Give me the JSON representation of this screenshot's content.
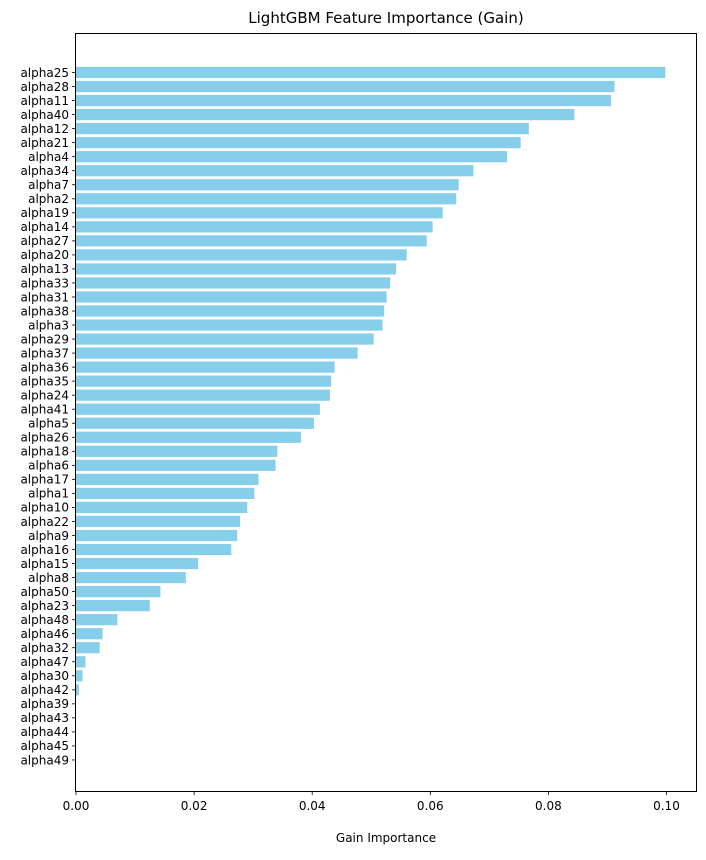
{
  "chart_data": {
    "type": "bar",
    "orientation": "horizontal",
    "title": "LightGBM Feature Importance (Gain)",
    "xlabel": "Gain Importance",
    "ylabel": "",
    "xlim": [
      0,
      0.105
    ],
    "xticks": [
      "0.00",
      "0.02",
      "0.04",
      "0.06",
      "0.08",
      "0.10"
    ],
    "bar_color": "#87CEEB",
    "categories": [
      "alpha25",
      "alpha28",
      "alpha11",
      "alpha40",
      "alpha12",
      "alpha21",
      "alpha4",
      "alpha34",
      "alpha7",
      "alpha2",
      "alpha19",
      "alpha14",
      "alpha27",
      "alpha20",
      "alpha13",
      "alpha33",
      "alpha31",
      "alpha38",
      "alpha3",
      "alpha29",
      "alpha37",
      "alpha36",
      "alpha35",
      "alpha24",
      "alpha41",
      "alpha5",
      "alpha26",
      "alpha18",
      "alpha6",
      "alpha17",
      "alpha1",
      "alpha10",
      "alpha22",
      "alpha9",
      "alpha16",
      "alpha15",
      "alpha8",
      "alpha50",
      "alpha23",
      "alpha48",
      "alpha46",
      "alpha32",
      "alpha47",
      "alpha30",
      "alpha42",
      "alpha39",
      "alpha43",
      "alpha44",
      "alpha45",
      "alpha49"
    ],
    "values": [
      0.0998,
      0.0912,
      0.0906,
      0.0844,
      0.0767,
      0.0753,
      0.073,
      0.0673,
      0.0648,
      0.0644,
      0.0621,
      0.0604,
      0.0594,
      0.056,
      0.0542,
      0.0532,
      0.0526,
      0.0522,
      0.0519,
      0.0504,
      0.0477,
      0.0438,
      0.0432,
      0.043,
      0.0413,
      0.0403,
      0.0381,
      0.0341,
      0.0338,
      0.0309,
      0.0302,
      0.029,
      0.0278,
      0.0273,
      0.0263,
      0.0207,
      0.0186,
      0.0143,
      0.0125,
      0.007,
      0.0045,
      0.004,
      0.0016,
      0.0011,
      0.0005,
      0,
      0,
      0,
      0,
      0
    ],
    "grid": false,
    "legend": "none"
  }
}
